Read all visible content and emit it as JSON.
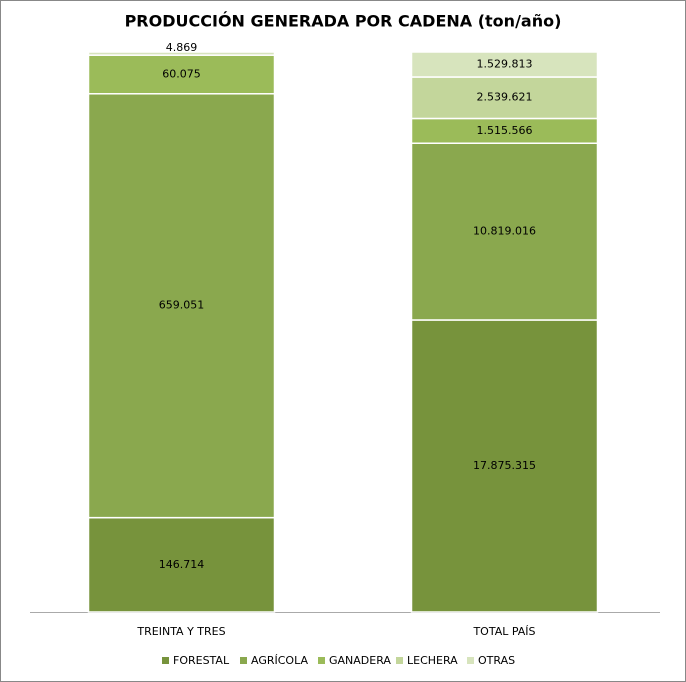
{
  "chart_data": {
    "type": "bar",
    "stacked": "percent",
    "title": "PRODUCCIÓN GENERADA POR CADENA (ton/año)",
    "categories": [
      "TREINTA Y TRES",
      "TOTAL PAÍS"
    ],
    "series": [
      {
        "name": "FORESTAL",
        "color": "#77933c",
        "values": [
          146714,
          17875315
        ],
        "value_labels": [
          "146.714",
          "17.875.315"
        ]
      },
      {
        "name": "AGRÍCOLA",
        "color": "#8aa84e",
        "values": [
          659051,
          10819016
        ],
        "value_labels": [
          "659.051",
          "10.819.016"
        ]
      },
      {
        "name": "GANADERA",
        "color": "#9bbb59",
        "values": [
          60075,
          1515566
        ],
        "value_labels": [
          "60.075",
          "1.515.566"
        ]
      },
      {
        "name": "LECHERA",
        "color": "#c3d69b",
        "values": [
          null,
          2539621
        ],
        "value_labels": [
          null,
          "2.539.621"
        ]
      },
      {
        "name": "OTRAS",
        "color": "#d7e4bd",
        "values": [
          4869,
          1529813
        ],
        "value_labels": [
          "4.869",
          "1.529.813"
        ]
      }
    ]
  }
}
